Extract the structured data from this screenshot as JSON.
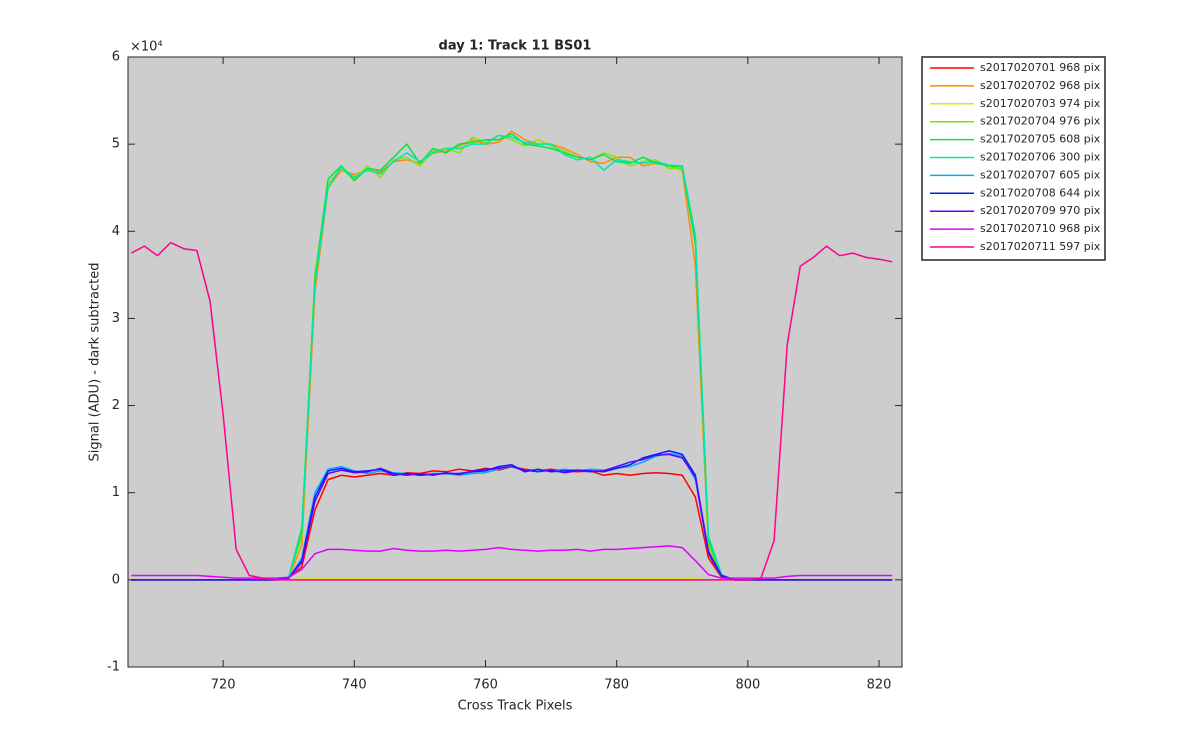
{
  "chart_data": {
    "type": "line",
    "title": "day 1: Track 11  BS01",
    "x_label": "Cross Track Pixels",
    "y_label": "Signal (ADU) - dark subtracted",
    "y_multiplier": "×10⁴",
    "xlim": [
      705.5,
      823.5
    ],
    "xticks": [
      720,
      740,
      760,
      780,
      800,
      820
    ],
    "ylim": [
      -1,
      6
    ],
    "yticks": [
      -1,
      0,
      1,
      2,
      3,
      4,
      5,
      6
    ],
    "background": "#cdcdcd",
    "legend": "outside-right",
    "x": [
      706,
      708,
      710,
      712,
      714,
      716,
      718,
      720,
      722,
      724,
      726,
      728,
      730,
      732,
      734,
      736,
      738,
      740,
      742,
      744,
      746,
      748,
      750,
      752,
      754,
      756,
      758,
      760,
      762,
      764,
      766,
      768,
      770,
      772,
      774,
      776,
      778,
      780,
      782,
      784,
      786,
      788,
      790,
      792,
      794,
      796,
      798,
      800,
      802,
      804,
      806,
      808,
      810,
      812,
      814,
      816,
      818,
      820,
      822
    ],
    "series": [
      {
        "name": "s2017020701 968 pix",
        "color": "#ff0000",
        "values": [
          0,
          0,
          0,
          0,
          0,
          0,
          0,
          0,
          0,
          0,
          0,
          0,
          0.02,
          0.15,
          0.8,
          1.15,
          1.2,
          1.18,
          1.2,
          1.22,
          1.2,
          1.23,
          1.22,
          1.25,
          1.24,
          1.27,
          1.25,
          1.28,
          1.26,
          1.3,
          1.27,
          1.25,
          1.27,
          1.25,
          1.24,
          1.25,
          1.2,
          1.22,
          1.2,
          1.22,
          1.23,
          1.22,
          1.2,
          0.95,
          0.25,
          0.03,
          0,
          0,
          0,
          0,
          0,
          0,
          0,
          0,
          0,
          0,
          0,
          0,
          0
        ]
      },
      {
        "name": "s2017020702 968 pix",
        "color": "#ff8c00",
        "values": [
          0,
          0,
          0,
          0,
          0,
          0,
          0,
          0,
          0,
          0,
          0,
          0,
          0.02,
          0.4,
          3.3,
          4.5,
          4.7,
          4.65,
          4.7,
          4.68,
          4.8,
          4.82,
          4.78,
          4.9,
          4.92,
          4.98,
          5.05,
          5.0,
          5.02,
          5.15,
          5.05,
          5.0,
          5.0,
          4.95,
          4.88,
          4.8,
          4.78,
          4.85,
          4.85,
          4.75,
          4.78,
          4.75,
          4.7,
          3.6,
          0.35,
          0.04,
          0,
          0,
          0,
          0,
          0,
          0,
          0,
          0,
          0,
          0,
          0,
          0,
          0
        ]
      },
      {
        "name": "s2017020703 974 pix",
        "color": "#e6e600",
        "values": [
          0,
          0,
          0,
          0,
          0,
          0,
          0,
          0,
          0,
          0,
          0,
          0,
          0,
          0.01,
          0.01,
          0.01,
          0.01,
          0.01,
          0.01,
          0.01,
          0.01,
          0.01,
          0.01,
          0.01,
          0.01,
          0.01,
          0.01,
          0.01,
          0.01,
          0.01,
          0.01,
          0.01,
          0.01,
          0.01,
          0.01,
          0.01,
          0.01,
          0.01,
          0.01,
          0.01,
          0.01,
          0.01,
          0.01,
          0.01,
          0,
          0,
          0,
          0,
          0,
          0,
          0,
          0,
          0,
          0,
          0,
          0,
          0,
          0,
          0
        ]
      },
      {
        "name": "s2017020704 976 pix",
        "color": "#80e600",
        "values": [
          0,
          0,
          0,
          0,
          0,
          0,
          0,
          0,
          0,
          0,
          0,
          0,
          0.03,
          0.5,
          3.5,
          4.55,
          4.72,
          4.6,
          4.75,
          4.62,
          4.82,
          4.85,
          4.75,
          4.92,
          4.95,
          4.9,
          5.08,
          5.02,
          5.1,
          5.05,
          4.98,
          5.05,
          4.98,
          4.92,
          4.85,
          4.82,
          4.9,
          4.85,
          4.75,
          4.8,
          4.82,
          4.72,
          4.72,
          3.9,
          0.4,
          0.05,
          0,
          0,
          0,
          0,
          0,
          0,
          0,
          0,
          0,
          0,
          0,
          0,
          0
        ]
      },
      {
        "name": "s2017020705 608 pix",
        "color": "#00e640",
        "values": [
          0,
          0,
          0,
          0,
          0,
          0,
          0,
          0,
          0,
          0,
          0,
          0,
          0.03,
          0.55,
          3.45,
          4.6,
          4.75,
          4.58,
          4.72,
          4.7,
          4.85,
          5.0,
          4.78,
          4.95,
          4.9,
          5.0,
          5.02,
          5.05,
          5.05,
          5.12,
          5.0,
          4.98,
          4.95,
          4.9,
          4.85,
          4.82,
          4.88,
          4.8,
          4.78,
          4.85,
          4.78,
          4.75,
          4.74,
          3.85,
          0.45,
          0.05,
          0,
          0,
          0,
          0,
          0,
          0,
          0,
          0,
          0,
          0,
          0,
          0,
          0
        ]
      },
      {
        "name": "s2017020706 300 pix",
        "color": "#00e6b0",
        "values": [
          0,
          0,
          0,
          0,
          0,
          0,
          0,
          0,
          0,
          0,
          0,
          0,
          0.03,
          0.6,
          3.4,
          4.5,
          4.74,
          4.62,
          4.7,
          4.66,
          4.8,
          4.9,
          4.8,
          4.9,
          4.95,
          4.95,
          5.0,
          5.0,
          5.1,
          5.08,
          5.02,
          5.0,
          5.0,
          4.88,
          4.82,
          4.85,
          4.7,
          4.82,
          4.8,
          4.78,
          4.8,
          4.76,
          4.75,
          3.95,
          0.5,
          0.06,
          0,
          0,
          0,
          0,
          0,
          0,
          0,
          0,
          0,
          0,
          0,
          0,
          0
        ]
      },
      {
        "name": "s2017020707 605 pix",
        "color": "#00aaff",
        "values": [
          0,
          0,
          0,
          0,
          0,
          0,
          0,
          0,
          0,
          0,
          0,
          0,
          0.02,
          0.25,
          1.0,
          1.27,
          1.3,
          1.25,
          1.22,
          1.25,
          1.23,
          1.22,
          1.2,
          1.22,
          1.22,
          1.2,
          1.22,
          1.23,
          1.27,
          1.3,
          1.25,
          1.26,
          1.25,
          1.27,
          1.25,
          1.27,
          1.26,
          1.28,
          1.3,
          1.35,
          1.42,
          1.45,
          1.42,
          1.15,
          0.3,
          0.04,
          0,
          0,
          0,
          0,
          0,
          0,
          0,
          0,
          0,
          0,
          0,
          0,
          0
        ]
      },
      {
        "name": "s2017020708 644 pix",
        "color": "#0020ff",
        "values": [
          0,
          0,
          0,
          0,
          0,
          0,
          0,
          0,
          0,
          0,
          0,
          0,
          0.02,
          0.22,
          0.95,
          1.25,
          1.28,
          1.24,
          1.25,
          1.27,
          1.2,
          1.22,
          1.2,
          1.21,
          1.22,
          1.22,
          1.24,
          1.25,
          1.3,
          1.32,
          1.24,
          1.27,
          1.24,
          1.25,
          1.26,
          1.25,
          1.24,
          1.28,
          1.32,
          1.4,
          1.44,
          1.48,
          1.44,
          1.2,
          0.32,
          0.05,
          0,
          0,
          0,
          0,
          0,
          0,
          0,
          0,
          0,
          0,
          0,
          0,
          0
        ]
      },
      {
        "name": "s2017020709 970 pix",
        "color": "#6000ff",
        "values": [
          0,
          0,
          0,
          0,
          0,
          0,
          0,
          0,
          0,
          0,
          0,
          0,
          0.02,
          0.2,
          0.9,
          1.22,
          1.26,
          1.23,
          1.24,
          1.28,
          1.22,
          1.2,
          1.22,
          1.2,
          1.23,
          1.21,
          1.25,
          1.27,
          1.28,
          1.3,
          1.26,
          1.24,
          1.26,
          1.23,
          1.25,
          1.24,
          1.25,
          1.3,
          1.35,
          1.38,
          1.43,
          1.44,
          1.4,
          1.18,
          0.3,
          0.04,
          0,
          0,
          0,
          0,
          0,
          0,
          0,
          0,
          0,
          0,
          0,
          0,
          0
        ]
      },
      {
        "name": "s2017020710 968 pix",
        "color": "#e000ff",
        "values": [
          0.05,
          0.05,
          0.05,
          0.05,
          0.05,
          0.05,
          0.04,
          0.03,
          0.02,
          0.02,
          0.02,
          0.02,
          0.03,
          0.12,
          0.3,
          0.35,
          0.35,
          0.34,
          0.33,
          0.33,
          0.36,
          0.34,
          0.33,
          0.33,
          0.34,
          0.33,
          0.34,
          0.35,
          0.37,
          0.35,
          0.34,
          0.33,
          0.34,
          0.34,
          0.35,
          0.33,
          0.35,
          0.35,
          0.36,
          0.37,
          0.38,
          0.39,
          0.37,
          0.22,
          0.06,
          0.02,
          0.02,
          0.02,
          0.02,
          0.02,
          0.04,
          0.05,
          0.05,
          0.05,
          0.05,
          0.05,
          0.05,
          0.05,
          0.05
        ]
      },
      {
        "name": "s2017020711 597 pix",
        "color": "#ff0090",
        "values": [
          3.75,
          3.83,
          3.72,
          3.87,
          3.8,
          3.78,
          3.2,
          1.9,
          0.35,
          0.05,
          0.02,
          0,
          0,
          0,
          0,
          0,
          0,
          0,
          0,
          0,
          0,
          0,
          0,
          0,
          0,
          0,
          0,
          0,
          0,
          0,
          0,
          0,
          0,
          0,
          0,
          0,
          0,
          0,
          0,
          0,
          0,
          0,
          0,
          0,
          0,
          0,
          0,
          0,
          0.02,
          0.45,
          2.7,
          3.6,
          3.7,
          3.83,
          3.72,
          3.75,
          3.7,
          3.68,
          3.65
        ]
      }
    ]
  }
}
